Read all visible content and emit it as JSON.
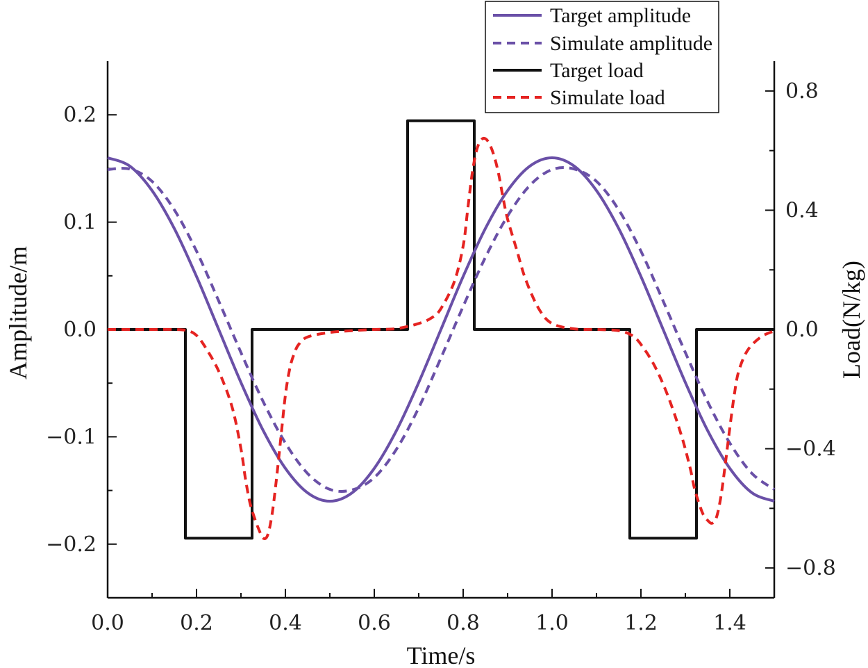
{
  "chart_data": {
    "type": "line",
    "title": "",
    "xlabel": "Time/s",
    "ylabel_left": "Amplitude/m",
    "ylabel_right": "Load(N/kg)",
    "xlim": [
      0.0,
      1.5
    ],
    "ylim_left": [
      -0.25,
      0.25
    ],
    "ylim_right": [
      -0.9,
      0.9
    ],
    "x_ticks": [
      0.0,
      0.2,
      0.4,
      0.6,
      0.8,
      1.0,
      1.2,
      1.4
    ],
    "x_tick_labels": [
      "0.0",
      "0.2",
      "0.4",
      "0.6",
      "0.8",
      "1.0",
      "1.2",
      "1.4"
    ],
    "y_left_ticks": [
      -0.2,
      -0.1,
      0.0,
      0.1,
      0.2
    ],
    "y_left_tick_labels": [
      "−0.2",
      "−0.1",
      "0.0",
      "0.1",
      "0.2"
    ],
    "y_right_ticks": [
      -0.8,
      -0.4,
      0.0,
      0.4,
      0.8
    ],
    "y_right_tick_labels": [
      "−0.8",
      "−0.4",
      "0.0",
      "0.4",
      "0.8"
    ],
    "grid": false,
    "legend_position": "top-right",
    "series": [
      {
        "name": "Target amplitude",
        "axis": "left",
        "color": "#6a50a7",
        "style": "solid",
        "x": [
          0.0,
          0.05,
          0.1,
          0.15,
          0.2,
          0.25,
          0.3,
          0.35,
          0.4,
          0.45,
          0.5,
          0.55,
          0.6,
          0.65,
          0.7,
          0.75,
          0.8,
          0.85,
          0.9,
          0.95,
          1.0,
          1.05,
          1.1,
          1.15,
          1.2,
          1.25,
          1.3,
          1.35,
          1.4,
          1.45,
          1.5
        ],
        "y": [
          0.16,
          0.1522,
          0.1294,
          0.0941,
          0.0494,
          0.0,
          -0.0494,
          -0.0941,
          -0.1294,
          -0.1522,
          -0.16,
          -0.1522,
          -0.1294,
          -0.0941,
          -0.0494,
          0.0,
          0.0494,
          0.0941,
          0.1294,
          0.1522,
          0.16,
          0.1522,
          0.1294,
          0.0941,
          0.0494,
          0.0,
          -0.0494,
          -0.0941,
          -0.1294,
          -0.1522,
          -0.16
        ]
      },
      {
        "name": "Simulate amplitude",
        "axis": "left",
        "color": "#6a50a7",
        "style": "dashed",
        "x": [
          0.0,
          0.05,
          0.1,
          0.15,
          0.2,
          0.25,
          0.3,
          0.35,
          0.4,
          0.45,
          0.5,
          0.55,
          0.6,
          0.65,
          0.7,
          0.75,
          0.8,
          0.85,
          0.9,
          0.95,
          1.0,
          1.05,
          1.1,
          1.15,
          1.2,
          1.25,
          1.3,
          1.35,
          1.4,
          1.45,
          1.5
        ],
        "y": [
          0.149,
          0.1495,
          0.138,
          0.1115,
          0.073,
          0.0265,
          -0.0215,
          -0.0672,
          -0.1058,
          -0.1342,
          -0.149,
          -0.1495,
          -0.138,
          -0.1115,
          -0.073,
          -0.0265,
          0.0215,
          0.0672,
          0.1058,
          0.1342,
          0.149,
          0.1495,
          0.138,
          0.1115,
          0.073,
          0.0265,
          -0.0215,
          -0.0672,
          -0.1058,
          -0.1342,
          -0.149
        ]
      },
      {
        "name": "Target load",
        "axis": "right",
        "color": "#111111",
        "style": "solid",
        "step": true,
        "x": [
          0.0,
          0.175,
          0.175,
          0.325,
          0.325,
          0.675,
          0.675,
          0.825,
          0.825,
          1.175,
          1.175,
          1.325,
          1.325,
          1.5
        ],
        "y": [
          0.0,
          0.0,
          -0.7,
          -0.7,
          0.0,
          0.0,
          0.7,
          0.7,
          0.0,
          0.0,
          -0.7,
          -0.7,
          0.0,
          0.0
        ]
      },
      {
        "name": "Simulate load",
        "axis": "right",
        "color": "#e52321",
        "style": "dashed",
        "x": [
          0.0,
          0.05,
          0.1,
          0.15,
          0.18,
          0.2,
          0.22,
          0.25,
          0.28,
          0.3,
          0.31,
          0.32,
          0.33,
          0.34,
          0.35,
          0.36,
          0.37,
          0.38,
          0.39,
          0.4,
          0.41,
          0.42,
          0.43,
          0.45,
          0.5,
          0.55,
          0.6,
          0.65,
          0.7,
          0.73,
          0.75,
          0.78,
          0.8,
          0.81,
          0.82,
          0.83,
          0.84,
          0.85,
          0.86,
          0.87,
          0.88,
          0.89,
          0.9,
          0.92,
          0.94,
          0.97,
          1.0,
          1.05,
          1.1,
          1.15,
          1.18,
          1.2,
          1.23,
          1.26,
          1.29,
          1.31,
          1.32,
          1.33,
          1.34,
          1.35,
          1.36,
          1.37,
          1.38,
          1.39,
          1.4,
          1.41,
          1.42,
          1.44,
          1.47,
          1.5
        ],
        "y": [
          0.0,
          0.0,
          0.0,
          0.0,
          -0.004,
          -0.02,
          -0.06,
          -0.14,
          -0.26,
          -0.4,
          -0.5,
          -0.58,
          -0.63,
          -0.67,
          -0.7,
          -0.69,
          -0.62,
          -0.5,
          -0.36,
          -0.22,
          -0.13,
          -0.08,
          -0.05,
          -0.025,
          -0.01,
          -0.004,
          0.0,
          0.003,
          0.02,
          0.04,
          0.07,
          0.16,
          0.28,
          0.4,
          0.52,
          0.6,
          0.635,
          0.64,
          0.62,
          0.58,
          0.52,
          0.44,
          0.37,
          0.27,
          0.17,
          0.07,
          0.02,
          0.002,
          0.0,
          -0.004,
          -0.02,
          -0.05,
          -0.12,
          -0.22,
          -0.35,
          -0.46,
          -0.53,
          -0.58,
          -0.62,
          -0.64,
          -0.65,
          -0.63,
          -0.56,
          -0.45,
          -0.33,
          -0.22,
          -0.14,
          -0.07,
          -0.025,
          -0.005
        ]
      }
    ]
  }
}
